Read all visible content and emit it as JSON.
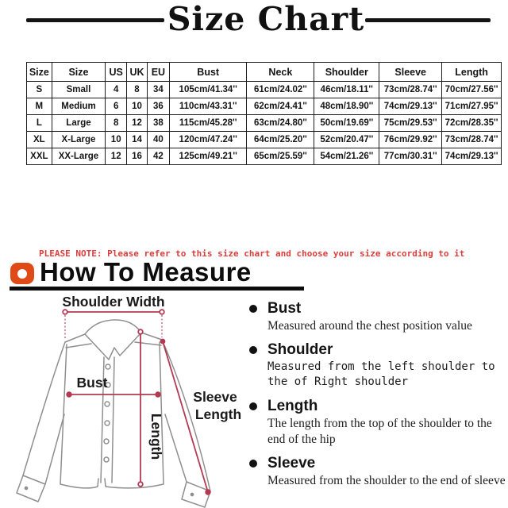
{
  "title": "Size Chart",
  "size_table": {
    "headers": [
      "Size",
      "Size",
      "US",
      "UK",
      "EU",
      "Bust",
      "Neck",
      "Shoulder",
      "Sleeve",
      "Length"
    ],
    "rows": [
      [
        "S",
        "Small",
        "4",
        "8",
        "34",
        "105cm/41.34''",
        "61cm/24.02''",
        "46cm/18.11''",
        "73cm/28.74''",
        "70cm/27.56''"
      ],
      [
        "M",
        "Medium",
        "6",
        "10",
        "36",
        "110cm/43.31''",
        "62cm/24.41''",
        "48cm/18.90''",
        "74cm/29.13''",
        "71cm/27.95''"
      ],
      [
        "L",
        "Large",
        "8",
        "12",
        "38",
        "115cm/45.28''",
        "63cm/24.80''",
        "50cm/19.69''",
        "75cm/29.53''",
        "72cm/28.35''"
      ],
      [
        "XL",
        "X-Large",
        "10",
        "14",
        "40",
        "120cm/47.24''",
        "64cm/25.20''",
        "52cm/20.47''",
        "76cm/29.92''",
        "73cm/28.74''"
      ],
      [
        "XXL",
        "XX-Large",
        "12",
        "16",
        "42",
        "125cm/49.21''",
        "65cm/25.59''",
        "54cm/21.26''",
        "77cm/30.31''",
        "74cm/29.13''"
      ]
    ]
  },
  "note": "PLEASE NOTE: Please refer to this size chart and choose your size according to it",
  "how_to_measure": {
    "heading": "How To Measure"
  },
  "diagram": {
    "labels": {
      "shoulder_width": "Shoulder Width",
      "bust": "Bust",
      "length": "Length",
      "sleeve_line1": "Sleeve",
      "sleeve_line2": "Length"
    }
  },
  "measure_items": [
    {
      "label": "Bust",
      "desc": "Measured around the chest position value"
    },
    {
      "label": "Shoulder",
      "desc": "Measured from the left shoulder to the of Right shoulder"
    },
    {
      "label": "Length",
      "desc": "The length from the top of the shoulder to the end of the hip"
    },
    {
      "label": "Sleeve",
      "desc": "Measured from the shoulder to the end of sleeve"
    }
  ],
  "colors": {
    "measure_line": "#b23a52",
    "icon_orange": "#df4a16",
    "note_red": "#e03b3b",
    "ink": "#141414"
  }
}
